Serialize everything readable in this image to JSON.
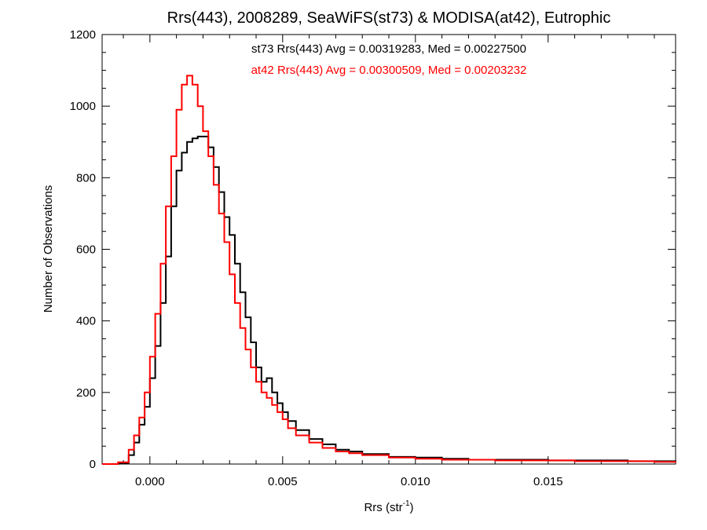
{
  "chart_data": {
    "type": "line",
    "title": "Rrs(443), 2008289, SeaWiFS(st73) & MODISA(at42), Eutrophic",
    "xlabel_base": "Rrs (str",
    "xlabel_sup": "-1",
    "xlabel_close": ")",
    "ylabel": "Number of Observations",
    "xlim": [
      -0.0018,
      0.0198
    ],
    "ylim": [
      0,
      1200
    ],
    "x_ticks": [
      {
        "value": 0.0,
        "label": "0.000"
      },
      {
        "value": 0.005,
        "label": "0.005"
      },
      {
        "value": 0.01,
        "label": "0.010"
      },
      {
        "value": 0.015,
        "label": "0.015"
      }
    ],
    "y_ticks": [
      {
        "value": 0,
        "label": "0"
      },
      {
        "value": 200,
        "label": "200"
      },
      {
        "value": 400,
        "label": "400"
      },
      {
        "value": 600,
        "label": "600"
      },
      {
        "value": 800,
        "label": "800"
      },
      {
        "value": 1000,
        "label": "1000"
      },
      {
        "value": 1200,
        "label": "1200"
      }
    ],
    "annotations": [
      {
        "text": "st73 Rrs(443) Avg = 0.00319283, Med = 0.00227500",
        "color": "#000000"
      },
      {
        "text": "at42 Rrs(443) Avg = 0.00300509, Med = 0.00203232",
        "color": "#ff0000"
      }
    ],
    "series": [
      {
        "color": "#000000",
        "x": [
          -0.0018,
          -0.0012,
          -0.0008,
          -0.0006,
          -0.0004,
          -0.0002,
          0.0,
          0.0002,
          0.0004,
          0.0006,
          0.0008,
          0.001,
          0.0012,
          0.0014,
          0.0016,
          0.0018,
          0.002,
          0.0022,
          0.0024,
          0.0026,
          0.0028,
          0.003,
          0.0032,
          0.0034,
          0.0036,
          0.0038,
          0.004,
          0.0042,
          0.0044,
          0.0046,
          0.0048,
          0.005,
          0.0052,
          0.0055,
          0.006,
          0.0065,
          0.007,
          0.0075,
          0.008,
          0.009,
          0.01,
          0.011,
          0.012,
          0.013,
          0.014,
          0.015,
          0.016,
          0.017,
          0.018,
          0.019,
          0.0198
        ],
        "values": [
          0,
          2,
          25,
          60,
          110,
          160,
          240,
          330,
          450,
          580,
          720,
          820,
          870,
          900,
          910,
          915,
          915,
          885,
          830,
          760,
          690,
          640,
          560,
          480,
          410,
          340,
          270,
          230,
          240,
          200,
          170,
          145,
          120,
          95,
          70,
          55,
          40,
          35,
          28,
          20,
          18,
          15,
          12,
          12,
          12,
          10,
          10,
          10,
          8,
          8,
          5
        ]
      },
      {
        "color": "#ff0000",
        "x": [
          -0.0018,
          -0.0012,
          -0.0008,
          -0.0006,
          -0.0004,
          -0.0002,
          0.0,
          0.0002,
          0.0004,
          0.0006,
          0.0008,
          0.001,
          0.0012,
          0.0014,
          0.0016,
          0.0018,
          0.002,
          0.0022,
          0.0024,
          0.0026,
          0.0028,
          0.003,
          0.0032,
          0.0034,
          0.0036,
          0.0038,
          0.004,
          0.0042,
          0.0044,
          0.0046,
          0.0048,
          0.005,
          0.0052,
          0.0055,
          0.006,
          0.0065,
          0.007,
          0.0075,
          0.008,
          0.009,
          0.01,
          0.011,
          0.012,
          0.013,
          0.014,
          0.015,
          0.016,
          0.017,
          0.018,
          0.019,
          0.0198
        ],
        "values": [
          0,
          5,
          40,
          80,
          130,
          200,
          300,
          420,
          560,
          720,
          860,
          990,
          1060,
          1085,
          1060,
          1000,
          930,
          860,
          780,
          700,
          620,
          530,
          450,
          380,
          320,
          270,
          230,
          200,
          185,
          165,
          145,
          125,
          100,
          80,
          60,
          45,
          35,
          30,
          25,
          18,
          15,
          12,
          12,
          10,
          10,
          10,
          8,
          8,
          8,
          6,
          4
        ]
      }
    ],
    "grid": false,
    "legend": "none"
  }
}
